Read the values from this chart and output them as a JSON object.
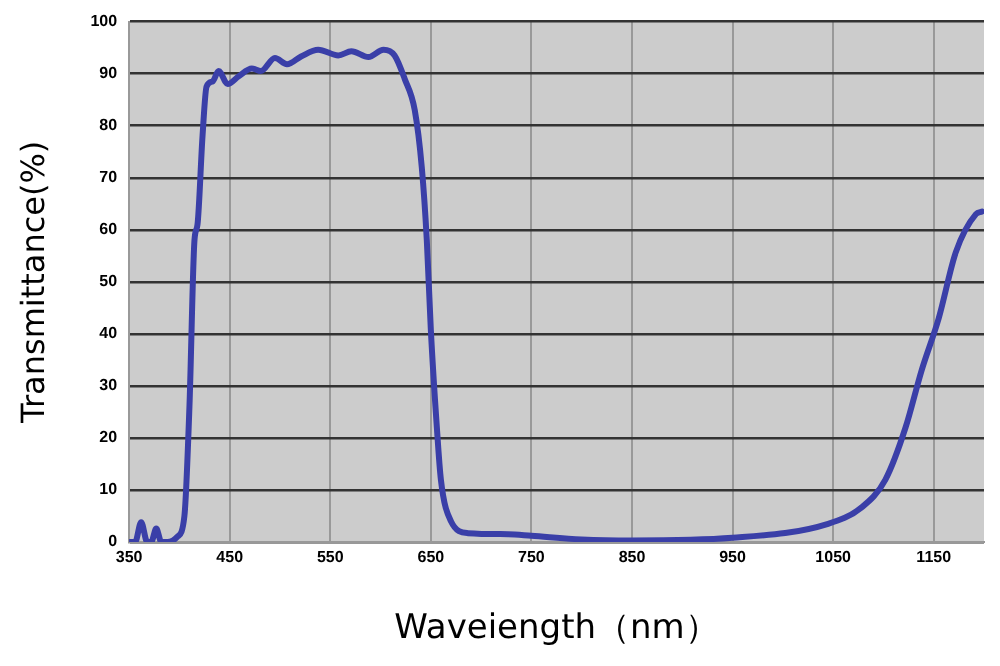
{
  "chart_data": {
    "type": "line",
    "xlabel": "Waveiength（nm）",
    "ylabel": "Transmittance(%)",
    "xlim": [
      350,
      1200
    ],
    "ylim": [
      0,
      100
    ],
    "xticks": [
      350,
      450,
      550,
      650,
      750,
      850,
      950,
      1050,
      1150
    ],
    "yticks": [
      0,
      10,
      20,
      30,
      40,
      50,
      60,
      70,
      80,
      90,
      100
    ],
    "grid": true,
    "legend": false,
    "marker": "none",
    "line_style": "solid",
    "series": [
      {
        "color": "#3a3fa8",
        "x": [
          350,
          356,
          362,
          368,
          372,
          377,
          382,
          388,
          398,
          405,
          410,
          415,
          418,
          423,
          427,
          433,
          439,
          448,
          459,
          472,
          481,
          495,
          507,
          521,
          538,
          558,
          571,
          588,
          603,
          614,
          624,
          634,
          641,
          646,
          650,
          656,
          660,
          670,
          687,
          727,
          750,
          800,
          850,
          950,
          1045,
          1078,
          1102,
          1122,
          1138,
          1155,
          1172,
          1192,
          1198
        ],
        "values": [
          0,
          0,
          3.8,
          0,
          0,
          2.6,
          0,
          0,
          1,
          5,
          26,
          58,
          61,
          78,
          87.5,
          88.5,
          90.5,
          88,
          89.5,
          91,
          90.5,
          93,
          91.8,
          93.3,
          94.6,
          93.5,
          94.3,
          93.2,
          94.6,
          93.5,
          89,
          83,
          72,
          58,
          40.8,
          22,
          12,
          4,
          1.7,
          1.5,
          1.2,
          0.5,
          0.3,
          0.8,
          3.5,
          6.6,
          12,
          22,
          33,
          43,
          55.7,
          63,
          63.5
        ]
      }
    ]
  }
}
